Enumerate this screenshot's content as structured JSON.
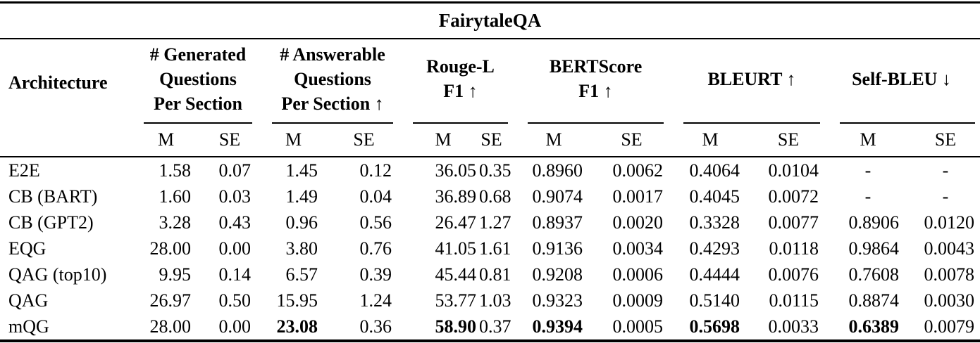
{
  "table": {
    "title": "FairytaleQA",
    "architecture_header": "Architecture",
    "groups": [
      {
        "label": "# Generated\nQuestions\nPer Section"
      },
      {
        "label": "# Answerable\nQuestions\nPer Section ↑"
      },
      {
        "label": "Rouge-L\nF1 ↑"
      },
      {
        "label": "BERTScore\nF1 ↑"
      },
      {
        "label": "BLEURT ↑"
      },
      {
        "label": "Self-BLEU ↓"
      }
    ],
    "subheaders": {
      "mean": "M",
      "se": "SE"
    },
    "rows": [
      {
        "architecture": "E2E",
        "values": [
          "1.58",
          "0.07",
          "1.45",
          "0.12",
          "36.05",
          "0.35",
          "0.8960",
          "0.0062",
          "0.4064",
          "0.0104",
          "-",
          "-"
        ],
        "bold": []
      },
      {
        "architecture": "CB (BART)",
        "values": [
          "1.60",
          "0.03",
          "1.49",
          "0.04",
          "36.89",
          "0.68",
          "0.9074",
          "0.0017",
          "0.4045",
          "0.0072",
          "-",
          "-"
        ],
        "bold": []
      },
      {
        "architecture": "CB (GPT2)",
        "values": [
          "3.28",
          "0.43",
          "0.96",
          "0.56",
          "26.47",
          "1.27",
          "0.8937",
          "0.0020",
          "0.3328",
          "0.0077",
          "0.8906",
          "0.0120"
        ],
        "bold": []
      },
      {
        "architecture": "EQG",
        "values": [
          "28.00",
          "0.00",
          "3.80",
          "0.76",
          "41.05",
          "1.61",
          "0.9136",
          "0.0034",
          "0.4293",
          "0.0118",
          "0.9864",
          "0.0043"
        ],
        "bold": []
      },
      {
        "architecture": "QAG (top10)",
        "values": [
          "9.95",
          "0.14",
          "6.57",
          "0.39",
          "45.44",
          "0.81",
          "0.9208",
          "0.0006",
          "0.4444",
          "0.0076",
          "0.7608",
          "0.0078"
        ],
        "bold": []
      },
      {
        "architecture": "QAG",
        "values": [
          "26.97",
          "0.50",
          "15.95",
          "1.24",
          "53.77",
          "1.03",
          "0.9323",
          "0.0009",
          "0.5140",
          "0.0115",
          "0.8874",
          "0.0030"
        ],
        "bold": []
      },
      {
        "architecture": "mQG",
        "values": [
          "28.00",
          "0.00",
          "23.08",
          "0.36",
          "58.90",
          "0.37",
          "0.9394",
          "0.0005",
          "0.5698",
          "0.0033",
          "0.6389",
          "0.0079"
        ],
        "bold": [
          2,
          4,
          6,
          8,
          10
        ]
      }
    ]
  }
}
